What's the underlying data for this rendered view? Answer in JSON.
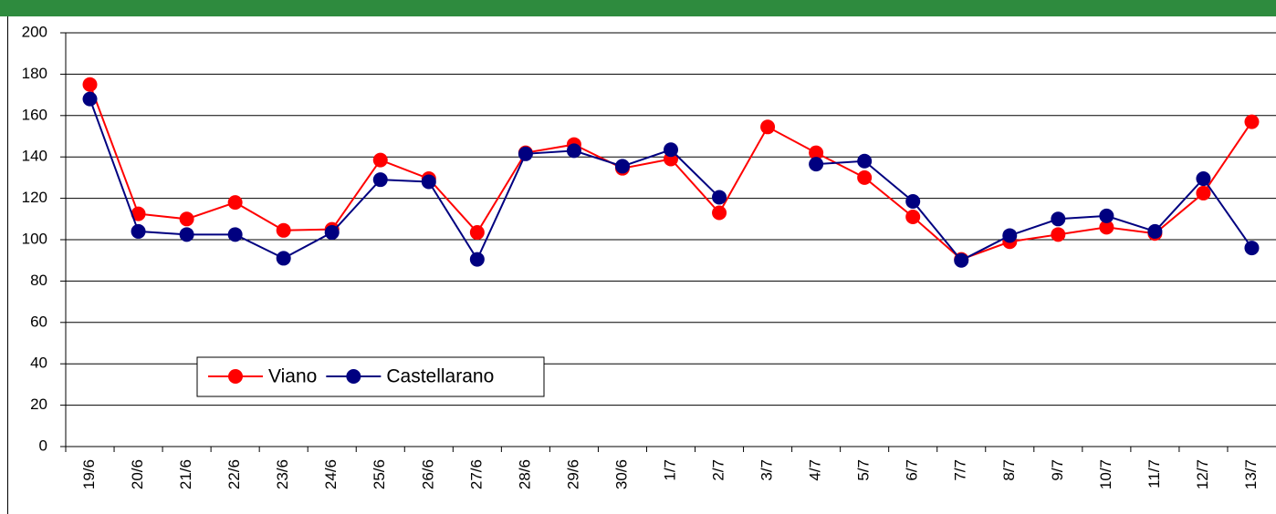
{
  "chart_data": {
    "type": "line",
    "categories": [
      "19/6",
      "20/6",
      "21/6",
      "22/6",
      "23/6",
      "24/6",
      "25/6",
      "26/6",
      "27/6",
      "28/6",
      "29/6",
      "30/6",
      "1/7",
      "2/7",
      "3/7",
      "4/7",
      "5/7",
      "6/7",
      "7/7",
      "8/7",
      "9/7",
      "10/7",
      "11/7",
      "12/7",
      "13/7"
    ],
    "series": [
      {
        "name": "Viano",
        "color": "#ff0000",
        "values": [
          175,
          112.5,
          110,
          118,
          104.5,
          105,
          138.5,
          129.5,
          103.5,
          142,
          146,
          134.5,
          139,
          113,
          154.5,
          142,
          130,
          111,
          90.5,
          99,
          102.5,
          106,
          103,
          122.5,
          157
        ]
      },
      {
        "name": "Castellarano",
        "color": "#000080",
        "values": [
          168,
          104,
          102.5,
          102.5,
          91,
          103.5,
          129,
          128,
          90.5,
          141.5,
          143,
          135.5,
          143.5,
          120.5,
          null,
          136.5,
          138,
          118.5,
          90,
          102,
          110,
          111.5,
          104,
          129.5,
          96
        ]
      }
    ],
    "ylim": [
      0,
      200
    ],
    "yticks": [
      0,
      20,
      40,
      60,
      80,
      100,
      120,
      140,
      160,
      180,
      200
    ],
    "grid": true,
    "legend": "lower left"
  }
}
